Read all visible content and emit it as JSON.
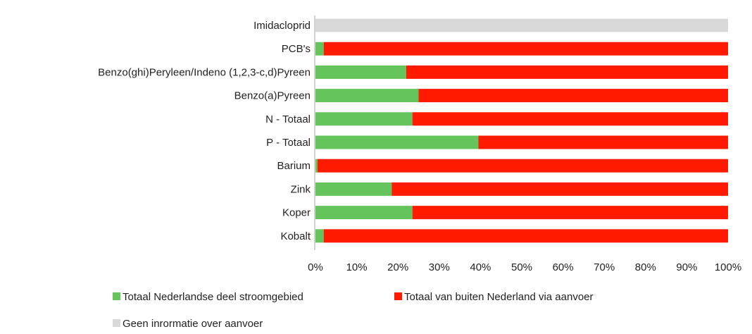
{
  "chart_data": {
    "type": "bar",
    "orientation": "horizontal",
    "stacked": true,
    "percent_stacked": true,
    "categories": [
      "Imidacloprid",
      "PCB's",
      "Benzo(ghi)Peryleen/Indeno (1,2,3-c,d)Pyreen",
      "Benzo(a)Pyreen",
      "N - Totaal",
      "P - Totaal",
      "Barium",
      "Zink",
      "Koper",
      "Kobalt"
    ],
    "series": [
      {
        "name": "Totaal Nederlandse deel stroomgebied",
        "color": "#66c45c",
        "values": [
          0,
          2,
          22,
          25,
          23.5,
          39.5,
          0.5,
          18.5,
          23.5,
          2
        ]
      },
      {
        "name": "Totaal van buiten Nederland via aanvoer",
        "color": "#ff1a00",
        "values": [
          0,
          98,
          78,
          75,
          76.5,
          60.5,
          99.5,
          81.5,
          76.5,
          98
        ]
      },
      {
        "name": "Geen inrormatie over aanvoer",
        "color": "#d9d9d9",
        "values": [
          100,
          0,
          0,
          0,
          0,
          0,
          0,
          0,
          0,
          0
        ]
      }
    ],
    "x_ticks": [
      "0%",
      "10%",
      "20%",
      "30%",
      "40%",
      "50%",
      "60%",
      "70%",
      "80%",
      "90%",
      "100%"
    ],
    "xlim": [
      0,
      100
    ],
    "grid": false,
    "legend_position": "bottom-left",
    "title": "",
    "xlabel": "",
    "ylabel": ""
  }
}
